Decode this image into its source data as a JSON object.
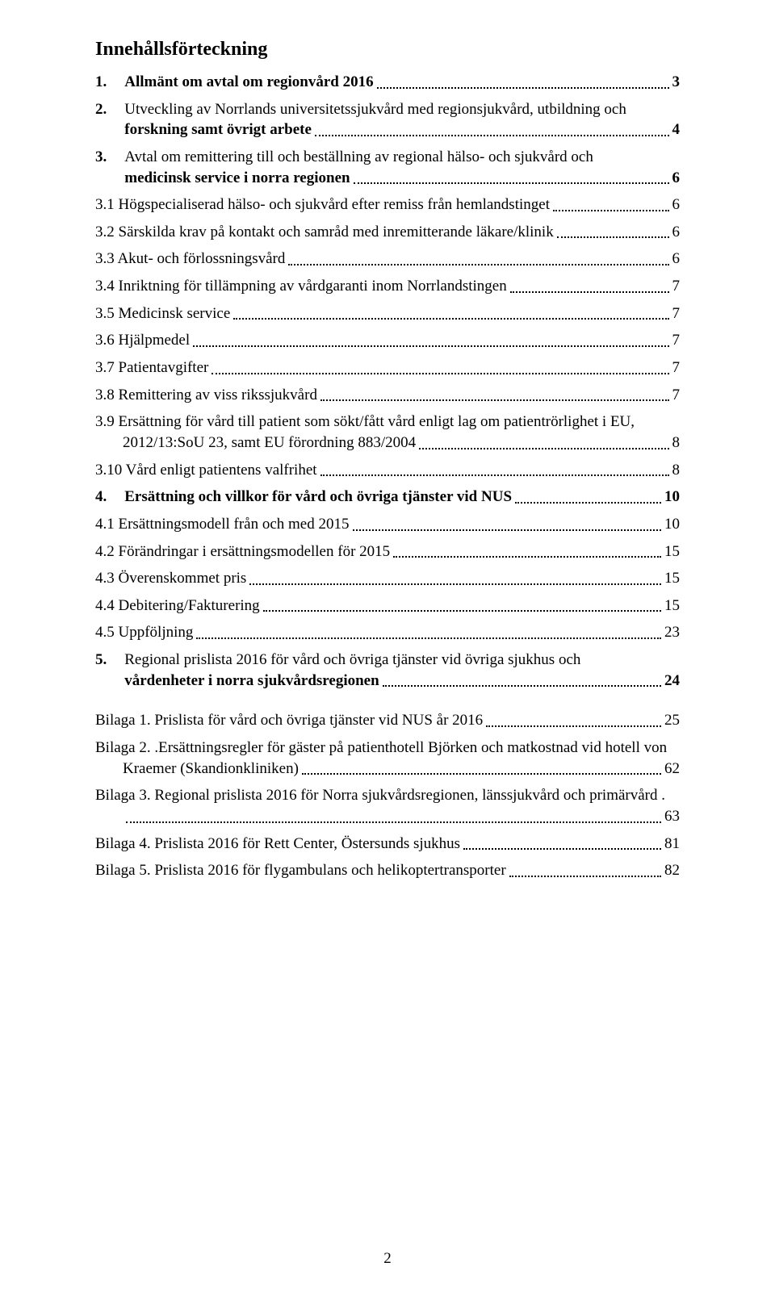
{
  "title": "Innehållsförteckning",
  "page_number": "2",
  "entries": [
    {
      "num": "1.",
      "text": "Allmänt om avtal om regionvård 2016",
      "page": "3",
      "bold": true,
      "indent": 0
    },
    {
      "num": "2.",
      "text": "Utveckling av Norrlands universitetssjukvård med regionsjukvård, utbildning och forskning samt övrigt arbete",
      "page": "4",
      "bold": true,
      "indent": 0,
      "multiline": true,
      "first_line": "Utveckling av Norrlands universitetssjukvård med regionsjukvård, utbildning och",
      "last_line": "forskning samt övrigt arbete"
    },
    {
      "num": "3.",
      "text": "Avtal om remittering till och beställning av regional hälso- och sjukvård och medicinsk service i norra regionen",
      "page": "6",
      "bold": true,
      "indent": 0,
      "multiline": true,
      "first_line": "Avtal om remittering till och beställning av regional hälso- och sjukvård och",
      "last_line": "medicinsk service i norra regionen"
    },
    {
      "num": "",
      "text": "3.1 Högspecialiserad hälso- och sjukvård efter remiss från hemlandstinget",
      "page": "6",
      "bold": false,
      "indent": 0
    },
    {
      "num": "",
      "text": "3.2 Särskilda krav på kontakt och samråd med inremitterande läkare/klinik",
      "page": "6",
      "bold": false,
      "indent": 0
    },
    {
      "num": "",
      "text": "3.3 Akut- och förlossningsvård",
      "page": "6",
      "bold": false,
      "indent": 0
    },
    {
      "num": "",
      "text": "3.4 Inriktning för tillämpning av vårdgaranti inom Norrlandstingen",
      "page": "7",
      "bold": false,
      "indent": 0
    },
    {
      "num": "",
      "text": "3.5 Medicinsk service",
      "page": "7",
      "bold": false,
      "indent": 0
    },
    {
      "num": "",
      "text": "3.6 Hjälpmedel",
      "page": "7",
      "bold": false,
      "indent": 0
    },
    {
      "num": "",
      "text": "3.7 Patientavgifter",
      "page": "7",
      "bold": false,
      "indent": 0
    },
    {
      "num": "",
      "text": "3.8 Remittering av viss rikssjukvård",
      "page": "7",
      "bold": false,
      "indent": 0
    },
    {
      "num": "",
      "text": "3.9 Ersättning för vård till patient som sökt/fått vård enligt lag om patientrörlighet i EU, 2012/13:SoU 23, samt EU förordning 883/2004",
      "page": "8",
      "bold": false,
      "indent": 0,
      "multiline": true,
      "first_line": "3.9 Ersättning för vård till patient som sökt/fått vård enligt lag om patientrörlighet i EU,",
      "last_line": "2012/13:SoU 23, samt EU förordning 883/2004"
    },
    {
      "num": "",
      "text": "3.10 Vård enligt patientens valfrihet",
      "page": "8",
      "bold": false,
      "indent": 0
    },
    {
      "num": "4.",
      "text": "Ersättning och villkor för vård och övriga tjänster vid NUS",
      "page": "10",
      "bold": true,
      "indent": 0
    },
    {
      "num": "",
      "text": "4.1 Ersättningsmodell från och med 2015",
      "page": "10",
      "bold": false,
      "indent": 0
    },
    {
      "num": "",
      "text": "4.2 Förändringar i ersättningsmodellen för 2015",
      "page": "15",
      "bold": false,
      "indent": 0
    },
    {
      "num": "",
      "text": "4.3 Överenskommet pris",
      "page": "15",
      "bold": false,
      "indent": 0
    },
    {
      "num": "",
      "text": "4.4 Debitering/Fakturering",
      "page": "15",
      "bold": false,
      "indent": 0
    },
    {
      "num": "",
      "text": "4.5 Uppföljning",
      "page": "23",
      "bold": false,
      "indent": 0
    },
    {
      "num": "5.",
      "text": "Regional prislista 2016 för vård och övriga tjänster vid övriga sjukhus och vårdenheter i norra sjukvårdsregionen",
      "page": "24",
      "bold": true,
      "indent": 0,
      "multiline": true,
      "first_line": "Regional prislista 2016 för vård och övriga tjänster vid övriga sjukhus och",
      "last_line": "vårdenheter i norra sjukvårdsregionen"
    },
    {
      "num": "",
      "text": "Bilaga 1.  Prislista för vård och övriga tjänster vid NUS år 2016",
      "page": "25",
      "bold": false,
      "indent": 0,
      "spaced": true
    },
    {
      "num": "",
      "text": "Bilaga 2. .Ersättningsregler för gäster på patienthotell Björken och matkostnad vid hotell von Kraemer (Skandionkliniken)",
      "page": "62",
      "bold": false,
      "indent": 0,
      "multiline": true,
      "first_line": "Bilaga 2. .Ersättningsregler för gäster på patienthotell Björken och matkostnad vid hotell von",
      "last_line": "Kraemer (Skandionkliniken)"
    },
    {
      "num": "",
      "text": "Bilaga 3. Regional prislista 2016 för Norra sjukvårdsregionen, länssjukvård och primärvård .",
      "page": "63",
      "bold": false,
      "indent": 0,
      "multiline": true,
      "first_line": "Bilaga 3. Regional prislista 2016 för Norra sjukvårdsregionen, länssjukvård och primärvård .",
      "last_line": ""
    },
    {
      "num": "",
      "text": "Bilaga 4. Prislista 2016 för Rett Center, Östersunds sjukhus",
      "page": "81",
      "bold": false,
      "indent": 0
    },
    {
      "num": "",
      "text": "Bilaga 5. Prislista 2016 för flygambulans och helikoptertransporter",
      "page": "82",
      "bold": false,
      "indent": 0
    }
  ]
}
